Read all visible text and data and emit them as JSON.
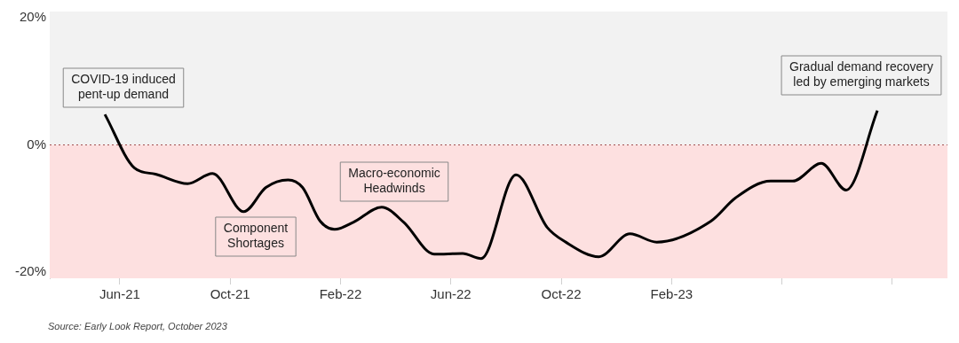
{
  "chart_data": {
    "type": "line",
    "marker": "none",
    "line_style": "solid",
    "x": [
      "2021-05-15",
      "2021-06-17",
      "2021-07-10",
      "2021-08-15",
      "2021-09-12",
      "2021-10-16",
      "2021-11-10",
      "2021-12-04",
      "2021-12-20",
      "2022-01-09",
      "2022-01-25",
      "2022-02-15",
      "2022-03-16",
      "2022-04-10",
      "2022-05-13",
      "2022-06-14",
      "2022-07-04",
      "2022-08-12",
      "2022-09-16",
      "2022-10-06",
      "2022-11-12",
      "2022-12-16",
      "2023-01-15",
      "2023-03-14",
      "2023-04-11",
      "2023-05-19",
      "2023-06-13",
      "2023-07-14",
      "2023-08-11",
      "2023-09-15"
    ],
    "series": [
      {
        "color": "#000000",
        "values": [
          4.8,
          -3.6,
          -4.6,
          -6.1,
          -4.5,
          -10.5,
          -6.7,
          -5.5,
          -6.7,
          -12.0,
          -13.3,
          -12.2,
          -9.8,
          -12.2,
          -17.2,
          -17.1,
          -17.9,
          -4.7,
          -13.0,
          -15.3,
          -17.6,
          -14.0,
          -15.3,
          -12.0,
          -8.3,
          -5.7,
          -5.7,
          -2.9,
          -7.1,
          5.4
        ]
      }
    ],
    "xlim": [
      "2021-03-15",
      "2023-12-01"
    ],
    "xticks": [
      {
        "value": "2021-06",
        "label": "Jun-21"
      },
      {
        "value": "2021-10",
        "label": "Oct-21"
      },
      {
        "value": "2022-02",
        "label": "Feb-22"
      },
      {
        "value": "2022-06",
        "label": "Jun-22"
      },
      {
        "value": "2022-10",
        "label": "Oct-22"
      },
      {
        "value": "2023-02",
        "label": "Feb-23"
      },
      {
        "value": "2023-06",
        "label": null
      },
      {
        "value": "2023-10",
        "label": null
      }
    ],
    "ylim": [
      -21,
      21
    ],
    "yticks": [
      {
        "value": 20,
        "label": "20%"
      },
      {
        "value": 0,
        "label": "0%"
      },
      {
        "value": -20,
        "label": "-20%"
      }
    ],
    "grid": false,
    "legend": false,
    "bands": [
      {
        "axis": "y",
        "from": 0,
        "to": 21,
        "color": "#f2f2f2"
      },
      {
        "axis": "y",
        "from": -21,
        "to": 0,
        "color": "#fde0e0"
      }
    ],
    "ref_lines": [
      {
        "axis": "y",
        "value": 0,
        "color": "#a05050",
        "line_style": "dotted"
      }
    ],
    "annotations": [
      "COVID-19 induced\npent-up demand",
      "Component\nShortages",
      "Macro-economic\nHeadwinds",
      "Gradual demand recovery\nled by emerging markets",
      "Source: Early Look Report, October 2023"
    ]
  }
}
